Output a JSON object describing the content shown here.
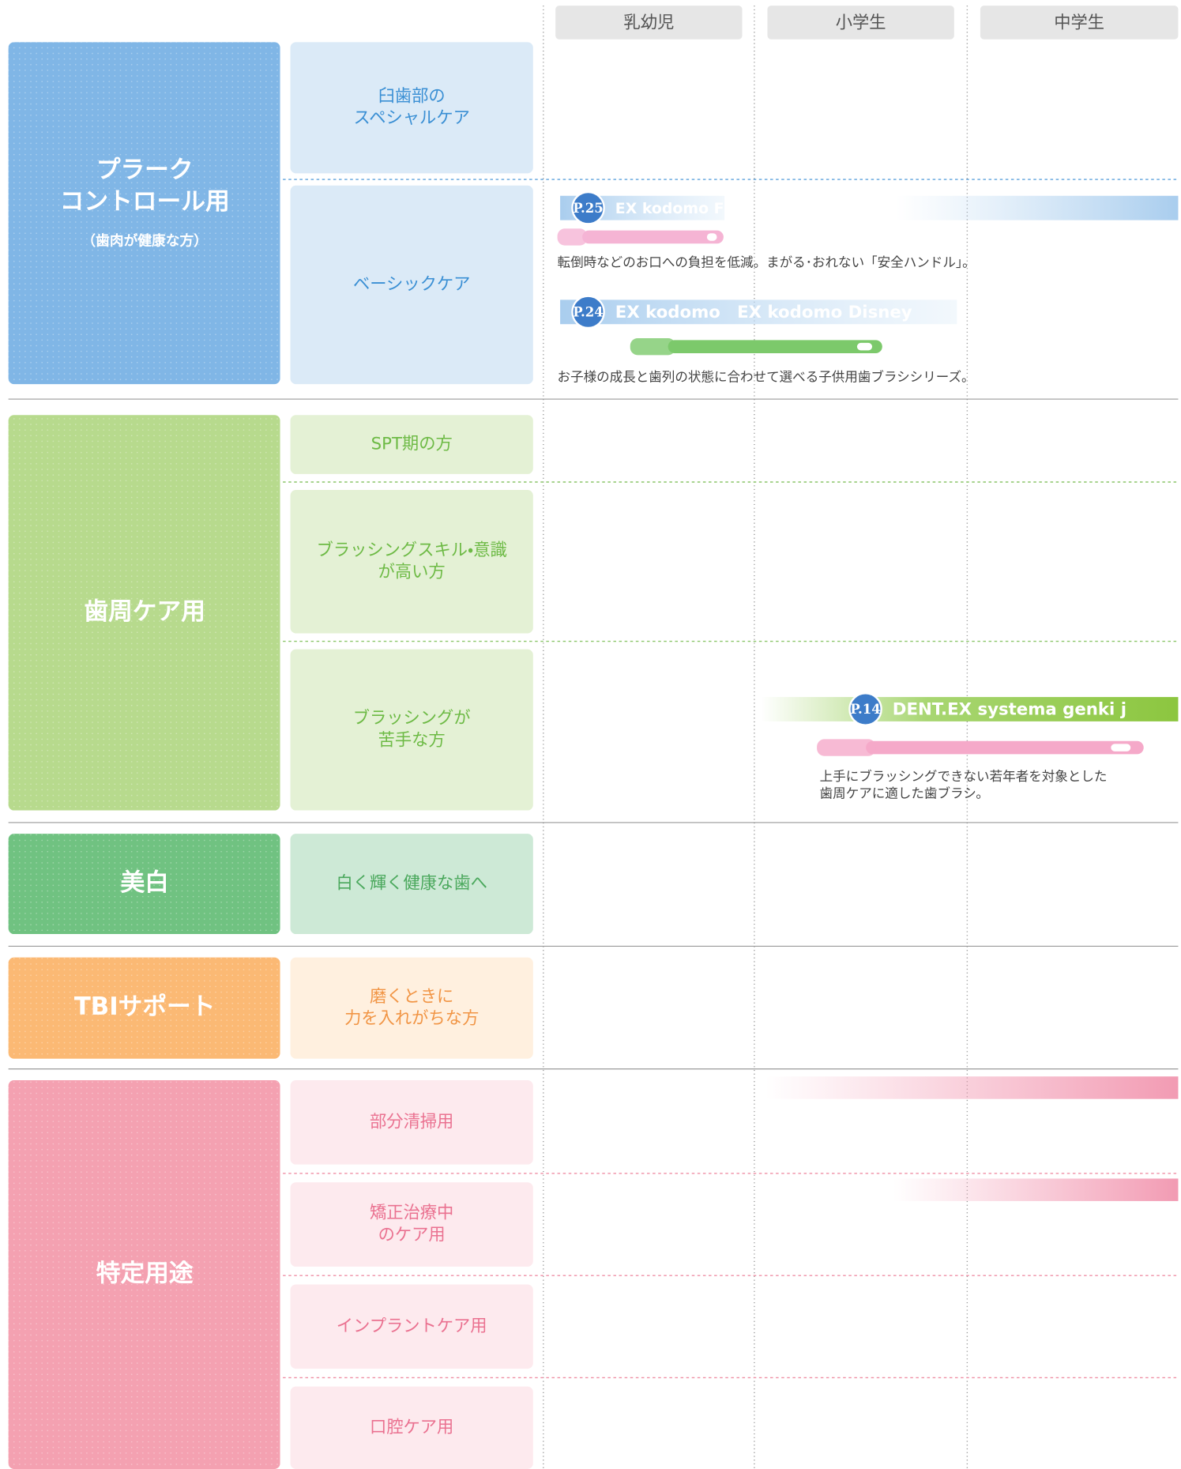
{
  "columns": [
    "乳幼児",
    "小学生",
    "中学生"
  ],
  "groups": [
    {
      "label": [
        "プラーク",
        "コントロール用"
      ],
      "note": "（歯肉が健康な方）",
      "rows": [
        {
          "label": [
            "臼歯部の",
            "スペシャルケア"
          ]
        },
        {
          "label": [
            "ベーシックケア"
          ]
        }
      ]
    },
    {
      "label": [
        "歯周ケア用"
      ],
      "rows": [
        {
          "label": [
            "SPT期の方"
          ]
        },
        {
          "label": [
            "ブラッシングスキル・意識",
            "が高い方"
          ]
        },
        {
          "label": [
            "ブラッシングが",
            "苦手な方"
          ]
        }
      ]
    },
    {
      "label": [
        "美白"
      ],
      "rows": [
        {
          "label": [
            "白く輝く健康な歯へ"
          ]
        }
      ]
    },
    {
      "label": [
        "TBIサポート"
      ],
      "rows": [
        {
          "label": [
            "磨くときに",
            "力を入れがちな方"
          ]
        }
      ]
    },
    {
      "label": [
        "特定用途"
      ],
      "rows": [
        {
          "label": [
            "部分清掃用"
          ]
        },
        {
          "label": [
            "矯正治療中",
            "のケア用"
          ]
        },
        {
          "label": [
            "インプラントケア用"
          ]
        },
        {
          "label": [
            "口腔ケア用"
          ]
        }
      ]
    }
  ],
  "products": [
    {
      "page": "P.25",
      "name": "EX kodomo F",
      "description": [
        "転倒時などのお口への負担を低減。まがる･おれない「安全ハンドル」。"
      ]
    },
    {
      "page": "P.24",
      "name": "EX kodomo　EX kodomo Disney",
      "description": [
        "お子様の成長と歯列の状態に合わせて選べる子供用歯ブラシシリーズ。"
      ]
    },
    {
      "page": "P.14",
      "name": "DENT.EX systema genki j",
      "description": [
        "上手にブラッシングできない若年者を対象とした",
        "歯周ケアに適した歯ブラシ。"
      ]
    }
  ]
}
